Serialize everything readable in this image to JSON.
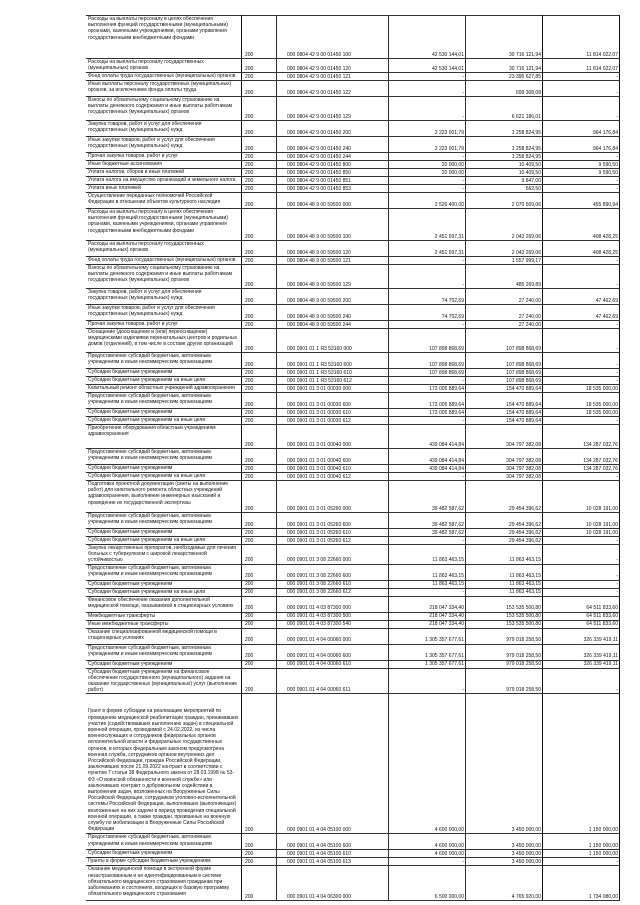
{
  "rows": [
    {
      "desc": "Расходы на выплаты персоналу в целях обеспечения выполнения функций государственными (муниципальными) органами, казенными учреждениями, органами управления государственными внебюджетными фондами",
      "code": "200",
      "kbk": "000 0804 42 9 00 01450 100",
      "v1": "42 530 144,01",
      "v2": "30 716 121,94",
      "v3": "11 814 022,07"
    },
    {
      "desc": "Расходы на выплаты персоналу государственных (муниципальных) органов",
      "code": "200",
      "kbk": "000 0804 42 9 00 01450 120",
      "v1": "42 530 144,01",
      "v2": "30 716 121,94",
      "v3": "11 814 022,07"
    },
    {
      "desc": "Фонд оплаты труда государственных (муниципальных) органов",
      "code": "200",
      "kbk": "000 0804 42 9 00 01450 121",
      "v1": "-",
      "v2": "23 395 627,85",
      "v3": "-"
    },
    {
      "desc": "Иные выплаты персоналу государственных (муниципальных) органов, за исключением фонда оплаты труда",
      "code": "200",
      "kbk": "000 0804 42 9 00 01450 122",
      "v1": "-",
      "v2": "699 308,08",
      "v3": "-"
    },
    {
      "desc": "Взносы по обязательному социальному страхованию на выплаты денежного содержания и иные выплаты работникам государственных (муниципальных) органов",
      "code": "200",
      "kbk": "000 0804 42 9 00 01450 129",
      "v1": "-",
      "v2": "6 621 186,01",
      "v3": "-"
    },
    {
      "desc": "Закупка товаров, работ и услуг для обеспечения государственных (муниципальных) нужд",
      "code": "200",
      "kbk": "000 0804 42 9 00 01450 200",
      "v1": "2 223 001,79",
      "v2": "1 258 824,95",
      "v3": "964 176,84"
    },
    {
      "desc": "Иные закупки товаров, работ и услуг для обеспечения государственных (муниципальных) нужд",
      "code": "200",
      "kbk": "000 0804 42 9 00 01450 240",
      "v1": "2 223 001,79",
      "v2": "1 258 824,95",
      "v3": "964 176,84"
    },
    {
      "desc": "Прочая закупка товаров, работ и услуг",
      "code": "200",
      "kbk": "000 0804 42 9 00 01450 244",
      "v1": "-",
      "v2": "1 258 824,95",
      "v3": "-"
    },
    {
      "desc": "Иные бюджетные ассигнования",
      "code": "200",
      "kbk": "000 0804 42 9 00 01450 800",
      "v1": "20 000,00",
      "v2": "10 409,50",
      "v3": "9 590,50"
    },
    {
      "desc": "Уплата налогов, сборов и иных платежей",
      "code": "200",
      "kbk": "000 0804 42 9 00 01450 850",
      "v1": "20 000,00",
      "v2": "10 409,50",
      "v3": "9 590,50"
    },
    {
      "desc": "Уплата налога на имущество организаций и земельного налога",
      "code": "200",
      "kbk": "000 0804 42 9 00 01450 851",
      "v1": "-",
      "v2": "9 847,00",
      "v3": "-"
    },
    {
      "desc": "Уплата иных платежей",
      "code": "200",
      "kbk": "000 0804 42 9 00 01450 853",
      "v1": "-",
      "v2": "562,50",
      "v3": "-"
    },
    {
      "desc": "Осуществление переданных полномочий Российской Федерации в отношении объектов культурного наследия",
      "code": "200",
      "kbk": "000 0804 48 9 00 59500 000",
      "v1": "2 526 400,00",
      "v2": "2 070 509,06",
      "v3": "455 890,94"
    },
    {
      "desc": "Расходы на выплаты персоналу в целях обеспечения выполнения функций государственными (муниципальными) органами, казенными учреждениями, органами управления государственными внебюджетными фондами",
      "code": "200",
      "kbk": "000 0804 48 9 00 59500 100",
      "v1": "2 451 697,31",
      "v2": "2 043 269,06",
      "v3": "408 428,25"
    },
    {
      "desc": "Расходы на выплаты персоналу государственных (муниципальных) органов",
      "code": "200",
      "kbk": "000 0804 48 9 00 59500 120",
      "v1": "2 451 697,31",
      "v2": "2 043 269,06",
      "v3": "408 428,25"
    },
    {
      "desc": "Фонд оплаты труда государственных (муниципальных) органов",
      "code": "200",
      "kbk": "000 0804 48 9 00 59500 121",
      "v1": "-",
      "v2": "1 557 999,17",
      "v3": "-"
    },
    {
      "desc": "Взносы по обязательному социальному страхованию на выплаты денежного содержания и иные выплаты работникам государственных (муниципальных) органов",
      "code": "200",
      "kbk": "000 0804 48 9 00 59500 129",
      "v1": "-",
      "v2": "485 269,89",
      "v3": "-"
    },
    {
      "desc": "Закупка товаров, работ и услуг для обеспечения государственных (муниципальных) нужд",
      "code": "200",
      "kbk": "000 0804 48 9 00 59500 200",
      "v1": "74 702,69",
      "v2": "27 240,00",
      "v3": "47 462,69"
    },
    {
      "desc": "Иные закупки товаров, работ и услуг для обеспечения государственных (муниципальных) нужд",
      "code": "200",
      "kbk": "000 0804 48 9 00 59500 240",
      "v1": "74 702,69",
      "v2": "27 240,00",
      "v3": "47 462,69"
    },
    {
      "desc": "Прочая закупка товаров, работ и услуг",
      "code": "200",
      "kbk": "000 0804 48 9 00 59500 244",
      "v1": "-",
      "v2": "27 240,00",
      "v3": "-"
    },
    {
      "desc": "Оснащение (дооснащение и (или) переоснащение) медицинскими изделиями перинатальных центров и родильных домов (отделений), в том числе в составе других организаций",
      "code": "200",
      "kbk": "000 0901 01 1 Я3 53160 000",
      "v1": "107 898 868,69",
      "v2": "107 898 868,69",
      "v3": "-"
    },
    {
      "desc": "Предоставление субсидий бюджетным, автономным учреждениям и иным некоммерческим организациям",
      "code": "200",
      "kbk": "000 0901 01 1 Я3 53160 600",
      "v1": "107 898 868,69",
      "v2": "107 898 868,69",
      "v3": "-"
    },
    {
      "desc": "Субсидии бюджетным учреждениям",
      "code": "200",
      "kbk": "000 0901 01 1 Я3 53160 610",
      "v1": "107 898 868,69",
      "v2": "107 898 868,69",
      "v3": "-"
    },
    {
      "desc": "Субсидии бюджетным учреждениям на иные цели",
      "code": "200",
      "kbk": "000 0901 01 1 Я3 53160 612",
      "v1": "-",
      "v2": "107 898 868,69",
      "v3": "-"
    },
    {
      "desc": "Капитальный ремонт областных учреждений здравоохранения",
      "code": "200",
      "kbk": "000 0901 01 3 01 00030 000",
      "v1": "173 005 889,64",
      "v2": "154 470 889,64",
      "v3": "18 535 000,00"
    },
    {
      "desc": "Предоставление субсидий бюджетным, автономным учреждениям и иным некоммерческим организациям",
      "code": "200",
      "kbk": "000 0901 01 3 01 00030 600",
      "v1": "173 005 889,64",
      "v2": "154 470 889,64",
      "v3": "18 535 000,00"
    },
    {
      "desc": "Субсидии бюджетным учреждениям",
      "code": "200",
      "kbk": "000 0901 01 3 01 00030 610",
      "v1": "173 005 889,64",
      "v2": "154 470 889,64",
      "v3": "18 535 000,00"
    },
    {
      "desc": "Субсидии бюджетным учреждениям на иные цели",
      "code": "200",
      "kbk": "000 0901 01 3 01 00030 612",
      "v1": "-",
      "v2": "154 470 889,64",
      "v3": "-"
    },
    {
      "desc": "Приобретение оборудования областным учреждениям здравоохранения",
      "code": "200",
      "kbk": "000 0901 01 3 01 00040 000",
      "v1": "439 084 414,84",
      "v2": "304 797 382,08",
      "v3": "134 287 032,76"
    },
    {
      "desc": "Предоставление субсидий бюджетным, автономным учреждениям и иным некоммерческим организациям",
      "code": "200",
      "kbk": "000 0901 01 3 01 00040 600",
      "v1": "439 084 414,84",
      "v2": "304 797 382,08",
      "v3": "134 287 032,76"
    },
    {
      "desc": "Субсидии бюджетным учреждениям",
      "code": "200",
      "kbk": "000 0901 01 3 01 00040 610",
      "v1": "439 084 414,84",
      "v2": "304 797 382,08",
      "v3": "134 287 032,76"
    },
    {
      "desc": "Субсидии бюджетным учреждениям на иные цели",
      "code": "200",
      "kbk": "000 0901 01 3 01 00040 612",
      "v1": "-",
      "v2": "304 797 382,08",
      "v3": "-"
    },
    {
      "desc": "Подготовка проектной документации (сметы на выполнение работ) для капитального ремонта областных учреждений здравоохранения, выполнение инженерных изысканий и проведение их государственной экспертизы",
      "code": "200",
      "kbk": "000 0901 01 3 01 05260 000",
      "v1": "39 482 587,62",
      "v2": "29 454 396,62",
      "v3": "10 028 191,00"
    },
    {
      "desc": "Предоставление субсидий бюджетным, автономным учреждениям и иным некоммерческим организациям",
      "code": "200",
      "kbk": "000 0901 01 3 01 05260 600",
      "v1": "39 482 587,62",
      "v2": "29 454 396,62",
      "v3": "10 028 191,00"
    },
    {
      "desc": "Субсидии бюджетным учреждениям",
      "code": "200",
      "kbk": "000 0901 01 3 01 05260 610",
      "v1": "39 482 587,62",
      "v2": "29 454 396,62",
      "v3": "10 028 191,00"
    },
    {
      "desc": "Субсидии бюджетным учреждениям на иные цели",
      "code": "200",
      "kbk": "000 0901 01 3 01 05260 612",
      "v1": "-",
      "v2": "29 454 396,62",
      "v3": "-"
    },
    {
      "desc": "Закупка лекарственных препаратов, необходимых для лечения больных с туберкулезом с широкой лекарственной устойчивостью",
      "code": "200",
      "kbk": "000 0901 01 3 08 22660 000",
      "v1": "11 863 463,15",
      "v2": "11 863 463,15",
      "v3": "-"
    },
    {
      "desc": "Предоставление субсидий бюджетным, автономным учреждениям и иным некоммерческим организациям",
      "code": "200",
      "kbk": "000 0901 01 3 08 22660 600",
      "v1": "11 863 463,15",
      "v2": "11 863 463,15",
      "v3": "-"
    },
    {
      "desc": "Субсидии бюджетным учреждениям",
      "code": "200",
      "kbk": "000 0901 01 3 08 22660 610",
      "v1": "11 863 463,15",
      "v2": "11 863 463,15",
      "v3": "-"
    },
    {
      "desc": "Субсидии бюджетным учреждениям на иные цели",
      "code": "200",
      "kbk": "000 0901 01 3 08 22660 612",
      "v1": "-",
      "v2": "11 863 463,15",
      "v3": "-"
    },
    {
      "desc": "Финансовое обеспечение оказания дополнительной медицинской помощи, оказываемой в стационарных условиях",
      "code": "200",
      "kbk": "000 0901 01 4 03 87300 000",
      "v1": "218 047 334,40",
      "v2": "153 535 500,80",
      "v3": "64 511 833,60"
    },
    {
      "desc": "Межбюджетные трансферты",
      "code": "200",
      "kbk": "000 0901 01 4 03 87300 500",
      "v1": "218 047 334,40",
      "v2": "153 535 500,80",
      "v3": "64 511 833,60"
    },
    {
      "desc": "Иные межбюджетные трансферты",
      "code": "200",
      "kbk": "000 0901 01 4 03 87300 540",
      "v1": "218 047 334,40",
      "v2": "153 535 500,80",
      "v3": "64 511 833,60"
    },
    {
      "desc": "Оказание специализированной медицинской помощи в стационарных условиях",
      "code": "200",
      "kbk": "000 0901 01 4 04 00060 000",
      "v1": "1 305 357 677,61",
      "v2": "979 018 258,50",
      "v3": "326 339 419,11"
    },
    {
      "desc": "Предоставление субсидий бюджетным, автономным учреждениям и иным некоммерческим организациям",
      "code": "200",
      "kbk": "000 0901 01 4 04 00060 600",
      "v1": "1 305 357 677,61",
      "v2": "979 018 258,50",
      "v3": "326 339 419,11"
    },
    {
      "desc": "Субсидии бюджетным учреждениям",
      "code": "200",
      "kbk": "000 0901 01 4 04 00060 610",
      "v1": "1 305 357 677,61",
      "v2": "979 018 258,50",
      "v3": "326 339 419,11"
    },
    {
      "desc": "Субсидии бюджетным учреждениям на финансовое обеспечение государственного (муниципального) задания на оказание государственных (муниципальных) услуг (выполнение работ)",
      "code": "200",
      "kbk": "000 0901 01 4 04 00060 611",
      "v1": "-",
      "v2": "979 018 258,50",
      "v3": "-"
    },
    {
      "desc": "Грант в форме субсидии на реализацию мероприятий по проведению медицинской реабилитации граждан, принимавших участие (содействовавших выполнению задач) в специальной военной операции, проводимой с 24.02.2022, из числа военнослужащих и сотрудников федеральных органов исполнительной власти и федеральных государственных органов, в которых федеральным законом предусмотрена военная служба, сотрудников органов внутренних дел Российской Федерации, граждан Российской Федерации, заключивших после 21.09.2022 контракт в соответствии с пунктом 7 статьи 38 Федерального закона от 28.03.1998 № 53-ФЗ «О воинской обязанности и военной службе» или заключивших контракт о добровольном содействии в выполнении задач, возложенных на Вооруженные Силы Российской Федерации, сотрудников уголовно-исполнительной системы Российской Федерации, выполнявших (выполняющих) возложенные на них задачи в период проведения специальной военной операции, а также граждан, призванных на военную службу по мобилизации в Вооруженные Силы Российской Федерации",
      "code": "200",
      "kbk": "000 0901 01 4 04 05100 000",
      "v1": "4 600 000,00",
      "v2": "3 450 000,00",
      "v3": "1 150 000,00"
    },
    {
      "desc": "Предоставление субсидий бюджетным, автономным учреждениям и иным некоммерческим организациям",
      "code": "200",
      "kbk": "000 0901 01 4 04 05100 600",
      "v1": "4 600 000,00",
      "v2": "3 450 000,00",
      "v3": "1 150 000,00"
    },
    {
      "desc": "Субсидии бюджетным учреждениям",
      "code": "200",
      "kbk": "000 0901 01 4 04 05100 610",
      "v1": "4 600 000,00",
      "v2": "3 450 000,00",
      "v3": "1 150 000,00"
    },
    {
      "desc": "Гранты в форме субсидии бюджетным учреждениям",
      "code": "200",
      "kbk": "000 0901 01 4 04 05100 613",
      "v1": "-",
      "v2": "3 450 000,00",
      "v3": "-"
    },
    {
      "desc": "Оказание медицинской помощи в экстренной форме незастрахованным и не идентифицированным в системе обязательного медицинского страхования гражданам при заболеваниях и состояниях, входящих в базовую программу обязательного медицинского страхования",
      "code": "200",
      "kbk": "000 0901 01 4 04 06300 000",
      "v1": "6 500 000,00",
      "v2": "4 765 920,00",
      "v3": "1 734 080,00"
    }
  ]
}
